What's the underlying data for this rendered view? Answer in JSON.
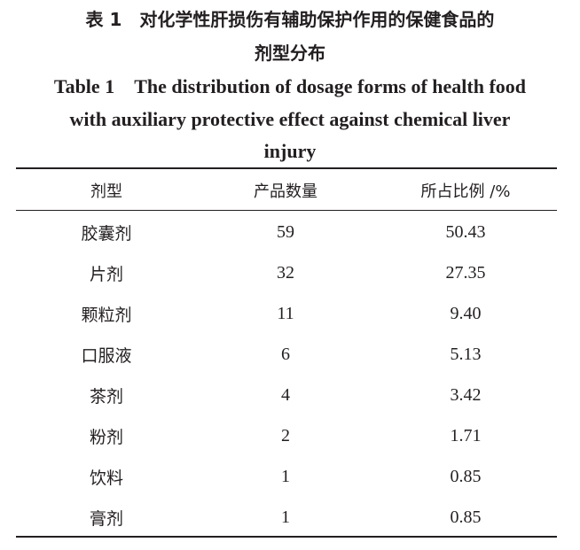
{
  "title_cn": [
    "表 1　对化学性肝损伤有辅助保护作用的保健食品的",
    "剂型分布"
  ],
  "title_en": [
    "Table 1　The distribution of dosage forms of health food",
    "with auxiliary protective effect against chemical liver",
    "injury"
  ],
  "headers": [
    "剂型",
    "产品数量",
    "所占比例 /%"
  ],
  "rows": [
    [
      "胶囊剂",
      "59",
      "50.43"
    ],
    [
      "片剂",
      "32",
      "27.35"
    ],
    [
      "颗粒剂",
      "11",
      "9.40"
    ],
    [
      "口服液",
      "6",
      "5.13"
    ],
    [
      "茶剂",
      "4",
      "3.42"
    ],
    [
      "粉剂",
      "2",
      "1.71"
    ],
    [
      "饮料",
      "1",
      "0.85"
    ],
    [
      "膏剂",
      "1",
      "0.85"
    ]
  ]
}
